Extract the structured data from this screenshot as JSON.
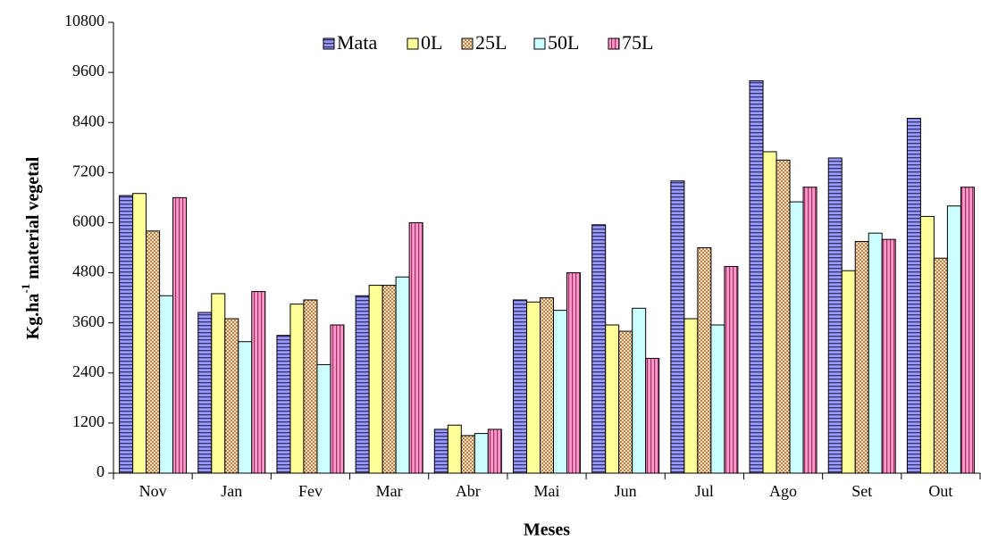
{
  "chart_data": {
    "type": "bar",
    "y_label": [
      "Kg.ha",
      "-1",
      " material vegetal"
    ],
    "x_label": "Meses",
    "categories": [
      "Nov",
      "Jan",
      "Fev",
      "Mar",
      "Abr",
      "Mai",
      "Jun",
      "Jul",
      "Ago",
      "Set",
      "Out"
    ],
    "series": [
      {
        "name": "Mata",
        "color": "#9999ff",
        "pattern": "horizontal-lines",
        "values": [
          6650,
          3850,
          3300,
          4250,
          1050,
          4150,
          5950,
          7000,
          9400,
          7550,
          8500
        ]
      },
      {
        "name": "0L",
        "color": "#ffff99",
        "pattern": "none",
        "values": [
          6700,
          4300,
          4050,
          4500,
          1150,
          4100,
          3550,
          3700,
          7700,
          4850,
          6150
        ]
      },
      {
        "name": "25L",
        "color": "#f5deb3",
        "pattern": "dots",
        "values": [
          5800,
          3700,
          4150,
          4500,
          900,
          4200,
          3400,
          5400,
          7500,
          5550,
          5150
        ]
      },
      {
        "name": "50L",
        "color": "#ccffff",
        "pattern": "none",
        "values": [
          4250,
          3150,
          2600,
          4700,
          950,
          3900,
          3950,
          3550,
          6500,
          5750,
          6400
        ]
      },
      {
        "name": "75L",
        "color": "#ff99cc",
        "pattern": "vertical-lines",
        "values": [
          6600,
          4350,
          3550,
          6000,
          1050,
          4800,
          2750,
          4950,
          6850,
          5600,
          6850
        ]
      }
    ],
    "ylim": [
      0,
      10800
    ],
    "yticks": [
      0,
      1200,
      2400,
      3600,
      4800,
      6000,
      7200,
      8400,
      9600,
      10800
    ],
    "grid": false,
    "legend": "top"
  }
}
